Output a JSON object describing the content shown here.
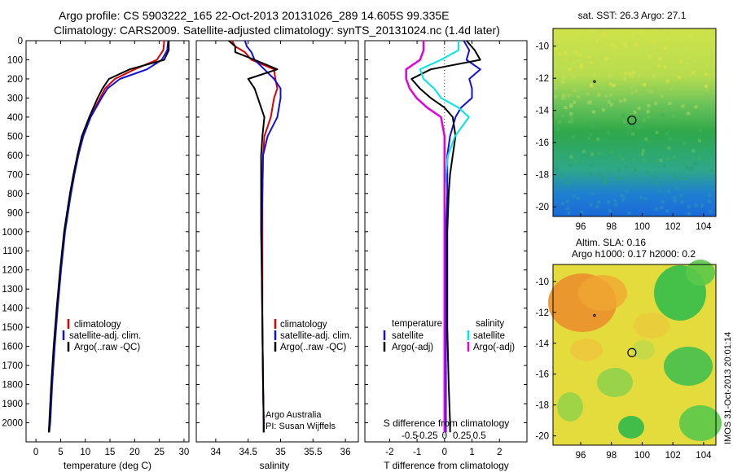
{
  "header": {
    "line1": "Argo profile: CS 5903222_165 22-Oct-2013 20131026_289 14.605S 99.335E",
    "line2": "Climatology: CARS2009. Satellite-adjusted climatology: synTS_20131024.nc (1.4d later)"
  },
  "colors": {
    "climatology": "#e00000",
    "satellite": "#1010e0",
    "argo": "#000000",
    "salinity_satellite": "#00e6e6",
    "salinity_argo": "#e000e0"
  },
  "side_stamp": "IMOS 31-Oct-2013 20:01:14",
  "chart_data": [
    {
      "type": "line",
      "xlabel": "temperature (deg C)",
      "ylabel": "",
      "xlim": [
        -2,
        31
      ],
      "ylim": [
        2100,
        0
      ],
      "x_ticks": [
        "0",
        "5",
        "10",
        "15",
        "20",
        "25",
        "30"
      ],
      "y_ticks": [
        "0",
        "100",
        "200",
        "300",
        "400",
        "500",
        "600",
        "700",
        "800",
        "900",
        "1000",
        "1100",
        "1200",
        "1300",
        "1400",
        "1500",
        "1600",
        "1700",
        "1800",
        "1900",
        "2000"
      ],
      "legend": [
        "climatology",
        "satellite-adj. clim.",
        "Argo(..raw -QC)"
      ],
      "depth": [
        0,
        50,
        100,
        150,
        200,
        250,
        300,
        400,
        500,
        600,
        700,
        800,
        900,
        1000,
        1200,
        1400,
        1600,
        1800,
        2000,
        2050
      ],
      "series": [
        {
          "name": "climatology",
          "values": [
            26.0,
            25.8,
            24.5,
            20.0,
            16.0,
            14.0,
            13.0,
            11.0,
            9.5,
            8.5,
            7.7,
            7.0,
            6.4,
            5.8,
            5.0,
            4.3,
            3.7,
            3.2,
            2.8,
            2.6
          ]
        },
        {
          "name": "satellite-adj. clim.",
          "values": [
            26.8,
            26.6,
            25.5,
            22.5,
            17.0,
            14.5,
            13.3,
            11.1,
            9.6,
            8.6,
            7.8,
            7.1,
            6.5,
            5.9,
            5.1,
            4.4,
            3.8,
            3.3,
            2.9,
            2.7
          ]
        },
        {
          "name": "Argo(..raw -QC)",
          "values": [
            26.9,
            26.9,
            26.0,
            19.0,
            14.8,
            13.5,
            12.5,
            10.8,
            9.3,
            8.4,
            7.6,
            6.9,
            6.3,
            5.7,
            4.9,
            4.2,
            3.6,
            3.1,
            2.7,
            2.6
          ]
        }
      ]
    },
    {
      "type": "line",
      "xlabel": "salinity",
      "xlim": [
        33.7,
        36.2
      ],
      "ylim": [
        2100,
        0
      ],
      "x_ticks": [
        "34",
        "34.5",
        "35",
        "35.5",
        "36"
      ],
      "legend": [
        "climatology",
        "satellite-adj. clim.",
        "Argo(..raw -QC)"
      ],
      "annotations": [
        "Argo Australia",
        "PI: Susan Wijffels"
      ],
      "depth": [
        0,
        30,
        60,
        100,
        150,
        200,
        250,
        300,
        400,
        500,
        600,
        800,
        1000,
        1200,
        1500,
        1800,
        2000,
        2050
      ],
      "series": [
        {
          "name": "climatology",
          "values": [
            34.25,
            34.3,
            34.45,
            34.55,
            34.9,
            34.92,
            34.95,
            34.9,
            34.85,
            34.75,
            34.73,
            34.72,
            34.72,
            34.72,
            34.72,
            34.73,
            34.74,
            34.74
          ]
        },
        {
          "name": "satellite-adj. clim.",
          "values": [
            34.45,
            34.48,
            34.55,
            34.6,
            34.75,
            34.9,
            35.0,
            35.0,
            34.95,
            34.8,
            34.73,
            34.72,
            34.71,
            34.71,
            34.72,
            34.73,
            34.74,
            34.74
          ]
        },
        {
          "name": "Argo(..raw -QC)",
          "values": [
            34.2,
            34.3,
            34.3,
            34.6,
            34.95,
            34.5,
            34.6,
            34.65,
            34.75,
            34.72,
            34.7,
            34.7,
            34.7,
            34.71,
            34.72,
            34.73,
            34.74,
            34.74
          ]
        }
      ]
    },
    {
      "type": "line",
      "xlabel": "T difference from climatology",
      "top_xlabel": "S difference from climatology",
      "xlim": [
        -2.9,
        3.0
      ],
      "ylim": [
        2100,
        0
      ],
      "x_ticks": [
        "-2",
        "-1",
        "0",
        "1",
        "2"
      ],
      "top_x_ticks": [
        "-0.5",
        "-0.25",
        "0",
        "0.25",
        "0.5"
      ],
      "legend_groups": [
        {
          "heading": "temperature",
          "items": [
            "satellite",
            "Argo(-adj)"
          ]
        },
        {
          "heading": "salinity",
          "items": [
            "satellite",
            "Argo(-adj)"
          ]
        }
      ],
      "depth": [
        0,
        50,
        100,
        150,
        200,
        250,
        300,
        350,
        400,
        500,
        600,
        700,
        800,
        1000,
        1200,
        1500,
        1800,
        2000,
        2050
      ],
      "series": [
        {
          "name": "temperature satellite",
          "values": [
            0.7,
            0.9,
            0.8,
            1.3,
            0.9,
            1.0,
            1.0,
            0.6,
            0.4,
            0.2,
            0.1,
            0.1,
            0.1,
            0.05,
            0.05,
            0.05,
            0.05,
            0.05,
            0.05
          ]
        },
        {
          "name": "temperature Argo(-adj)",
          "values": [
            0.8,
            1.1,
            1.3,
            -0.5,
            -1.2,
            -0.9,
            -0.5,
            0.0,
            0.3,
            0.4,
            0.3,
            0.2,
            0.15,
            0.1,
            0.1,
            0.1,
            0.15,
            0.2,
            0.2
          ]
        },
        {
          "name": "salinity satellite",
          "values": [
            0.2,
            0.2,
            -0.05,
            -0.35,
            -0.3,
            -0.15,
            -0.05,
            0.2,
            0.35,
            0.15,
            0.05,
            0.02,
            0.0,
            0.0,
            0.0,
            0.0,
            0.0,
            0.0,
            0.0
          ]
        },
        {
          "name": "salinity Argo(-adj)",
          "values": [
            -0.3,
            -0.3,
            -0.35,
            -0.55,
            -0.55,
            -0.5,
            -0.4,
            -0.25,
            -0.05,
            0.0,
            0.0,
            0.0,
            0.0,
            0.0,
            0.0,
            0.0,
            0.0,
            0.0,
            0.0
          ]
        }
      ]
    },
    {
      "type": "heatmap",
      "title": "sat. SST: 26.3 Argo: 27.1",
      "x_ticks": [
        "96",
        "98",
        "100",
        "102",
        "104"
      ],
      "y_ticks": [
        "-10",
        "-12",
        "-14",
        "-16",
        "-18",
        "-20"
      ],
      "xlim": [
        94.2,
        104.8
      ],
      "ylim": [
        -20.6,
        -8.9
      ],
      "marker": {
        "lon": 99.335,
        "lat": -14.605
      }
    },
    {
      "type": "heatmap",
      "title": "Altim. SLA: 0.16",
      "subtitle": "Argo h1000: 0.17 h2000: 0.2",
      "x_ticks": [
        "96",
        "98",
        "100",
        "102",
        "104"
      ],
      "y_ticks": [
        "-10",
        "-12",
        "-14",
        "-16",
        "-18",
        "-20"
      ],
      "xlim": [
        94.2,
        104.8
      ],
      "ylim": [
        -20.6,
        -8.9
      ],
      "marker": {
        "lon": 99.335,
        "lat": -14.605
      }
    }
  ]
}
